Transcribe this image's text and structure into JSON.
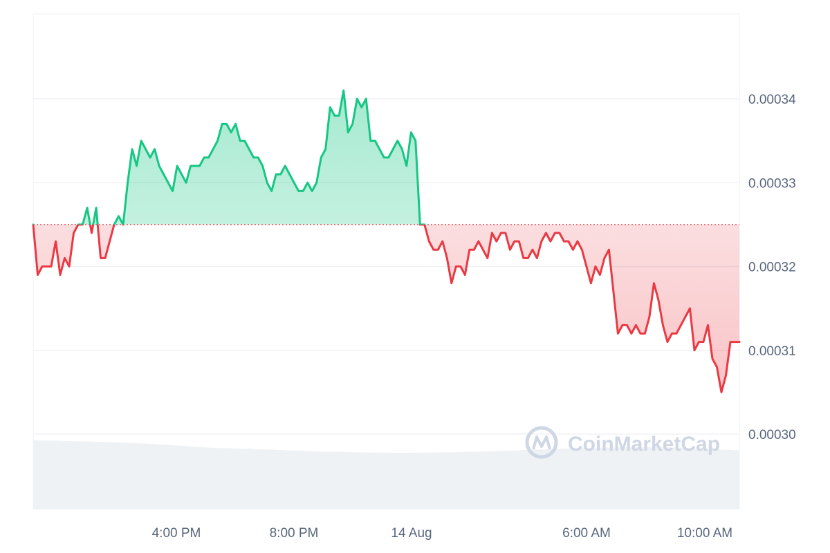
{
  "chart_data": {
    "type": "line",
    "baseline": 0.000325,
    "ylim": [
      0.000291,
      0.0003495
    ],
    "x_ticks": [
      "4:00 PM",
      "8:00 PM",
      "14 Aug",
      "6:00 AM",
      "10:00 AM"
    ],
    "y_ticks": [
      "0.00034",
      "0.00033",
      "0.00032",
      "0.00031",
      "0.00030"
    ],
    "y_tick_values": [
      0.00034,
      0.00033,
      0.00032,
      0.00031,
      0.0003
    ],
    "colors": {
      "up": "#16c784",
      "down": "#ea3943",
      "grid": "#eff2f5",
      "volume": "#eff2f5"
    },
    "grid": true,
    "series": [
      {
        "values": [
          0.000325,
          0.000319,
          0.00032,
          0.00032,
          0.00032,
          0.000323,
          0.000319,
          0.000321,
          0.00032,
          0.000324,
          0.000325,
          0.000325,
          0.000327,
          0.000324,
          0.000327,
          0.000321,
          0.000321,
          0.000323,
          0.000325,
          0.000326,
          0.000325,
          0.00033,
          0.000334,
          0.000332,
          0.000335,
          0.000334,
          0.000333,
          0.000334,
          0.000332,
          0.000331,
          0.00033,
          0.000329,
          0.000332,
          0.000331,
          0.00033,
          0.000332,
          0.000332,
          0.000332,
          0.000333,
          0.000333,
          0.000334,
          0.000335,
          0.000337,
          0.000337,
          0.000336,
          0.000337,
          0.000335,
          0.000335,
          0.000334,
          0.000333,
          0.000333,
          0.000332,
          0.00033,
          0.000329,
          0.000331,
          0.000331,
          0.000332,
          0.000331,
          0.00033,
          0.000329,
          0.000329,
          0.00033,
          0.000329,
          0.00033,
          0.000333,
          0.000334,
          0.000339,
          0.000338,
          0.000338,
          0.000341,
          0.000336,
          0.000337,
          0.00034,
          0.000339,
          0.00034,
          0.000335,
          0.000335,
          0.000334,
          0.000333,
          0.000333,
          0.000334,
          0.000335,
          0.000334,
          0.000332,
          0.000336,
          0.000335,
          0.000325,
          0.000325,
          0.000323,
          0.000322,
          0.000322,
          0.000323,
          0.000321,
          0.000318,
          0.00032,
          0.00032,
          0.000319,
          0.000322,
          0.000322,
          0.000323,
          0.000322,
          0.000321,
          0.000324,
          0.000323,
          0.000324,
          0.000324,
          0.000322,
          0.000323,
          0.000323,
          0.000321,
          0.000321,
          0.000322,
          0.000321,
          0.000323,
          0.000324,
          0.000323,
          0.000324,
          0.000324,
          0.000323,
          0.000323,
          0.000322,
          0.000323,
          0.000322,
          0.00032,
          0.000318,
          0.00032,
          0.000319,
          0.000321,
          0.000322,
          0.000317,
          0.000312,
          0.000313,
          0.000313,
          0.000312,
          0.000313,
          0.000312,
          0.000312,
          0.000314,
          0.000318,
          0.000316,
          0.000313,
          0.000311,
          0.000312,
          0.000312,
          0.000313,
          0.000314,
          0.000315,
          0.00031,
          0.000311,
          0.000311,
          0.000313,
          0.000309,
          0.000308,
          0.000305,
          0.000307,
          0.000311,
          0.000311,
          0.000311
        ]
      }
    ]
  },
  "watermark": {
    "text": "CoinMarketCap",
    "icon": "coinmarketcap-logo-icon"
  }
}
